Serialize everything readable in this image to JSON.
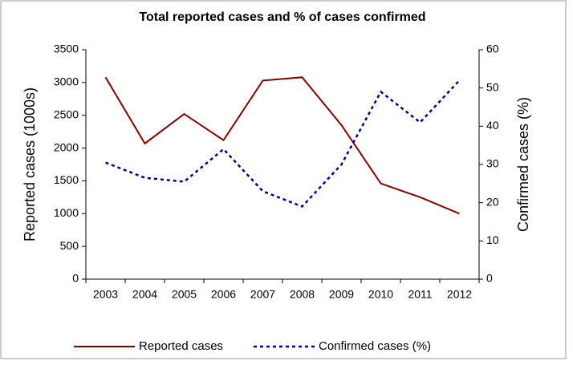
{
  "chart_data": {
    "type": "line",
    "title": "Total reported cases and % of cases confirmed",
    "y_label": "Reported cases (1000s)",
    "y2_label": "Confirmed cases (%)",
    "categories": [
      "2003",
      "2004",
      "2005",
      "2006",
      "2007",
      "2008",
      "2009",
      "2010",
      "2011",
      "2012"
    ],
    "series": [
      {
        "name": "Reported cases",
        "color": "#800000",
        "dash": "solid",
        "values": [
          3080,
          2070,
          2520,
          2120,
          3030,
          3080,
          2350,
          1460,
          1250,
          1000
        ]
      },
      {
        "name": "Confirmed cases (%)",
        "color": "#000080",
        "dash": "dotted",
        "axis": "y2",
        "values": [
          30.5,
          26.5,
          25.5,
          34,
          23,
          19,
          30,
          49,
          41,
          52
        ]
      }
    ],
    "ylim": [
      0,
      3500
    ],
    "yticks": [
      0,
      500,
      1000,
      1500,
      2000,
      2500,
      3000,
      3500
    ],
    "y2lim": [
      0,
      60
    ],
    "y2ticks": [
      0,
      10,
      20,
      30,
      40,
      50,
      60
    ],
    "grid": false,
    "legend": "bottom"
  }
}
